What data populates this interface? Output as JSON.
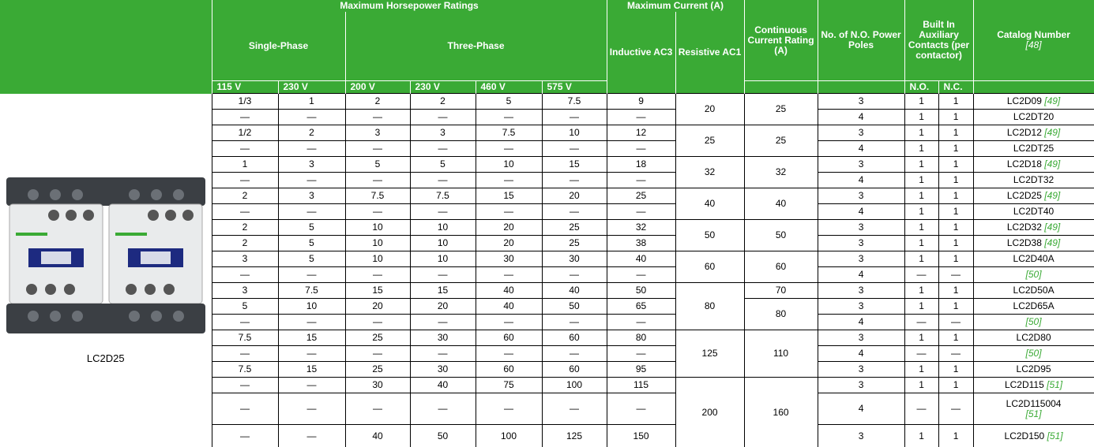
{
  "header": {
    "horsepower": "Maximum Horsepower Ratings",
    "current": "Maximum Current (A)",
    "single_phase": "Single-Phase",
    "three_phase": "Three-Phase",
    "inductive": "Inductive AC3",
    "resistive": "Resistive AC1",
    "continuous": "Continuous Current Rating (A)",
    "poles": "No. of N.O. Power Poles",
    "auxiliary": "Built In Auxiliary Contacts (per contactor)",
    "catalog": "Catalog Number",
    "catalog_ref": "[48]",
    "voltages": [
      "115 V",
      "230 V",
      "200 V",
      "230 V",
      "460 V",
      "575 V"
    ],
    "no": "N.O.",
    "nc": "N.C."
  },
  "image_caption": "LC2D25",
  "rows": [
    {
      "hp": [
        "1/3",
        "1",
        "2",
        "2",
        "5",
        "7.5"
      ],
      "inductive": "9",
      "resistive": "20",
      "continuous": "25",
      "poles": "3",
      "no": "1",
      "nc": "1",
      "catalog": "LC2D09",
      "ref": "[49]"
    },
    {
      "hp": [
        "—",
        "—",
        "—",
        "—",
        "—",
        "—"
      ],
      "inductive": "—",
      "poles": "4",
      "no": "1",
      "nc": "1",
      "catalog": "LC2DT20"
    },
    {
      "hp": [
        "1/2",
        "2",
        "3",
        "3",
        "7.5",
        "10"
      ],
      "inductive": "12",
      "resistive": "25",
      "continuous": "25",
      "poles": "3",
      "no": "1",
      "nc": "1",
      "catalog": "LC2D12",
      "ref": "[49]"
    },
    {
      "hp": [
        "—",
        "—",
        "—",
        "—",
        "—",
        "—"
      ],
      "inductive": "—",
      "poles": "4",
      "no": "1",
      "nc": "1",
      "catalog": "LC2DT25"
    },
    {
      "hp": [
        "1",
        "3",
        "5",
        "5",
        "10",
        "15"
      ],
      "inductive": "18",
      "resistive": "32",
      "continuous": "32",
      "poles": "3",
      "no": "1",
      "nc": "1",
      "catalog": "LC2D18",
      "ref": "[49]"
    },
    {
      "hp": [
        "—",
        "—",
        "—",
        "—",
        "—",
        "—"
      ],
      "inductive": "—",
      "poles": "4",
      "no": "1",
      "nc": "1",
      "catalog": "LC2DT32"
    },
    {
      "hp": [
        "2",
        "3",
        "7.5",
        "7.5",
        "15",
        "20"
      ],
      "inductive": "25",
      "resistive": "40",
      "continuous": "40",
      "poles": "3",
      "no": "1",
      "nc": "1",
      "catalog": "LC2D25",
      "ref": "[49]"
    },
    {
      "hp": [
        "—",
        "—",
        "—",
        "—",
        "—",
        "—"
      ],
      "inductive": "—",
      "poles": "4",
      "no": "1",
      "nc": "1",
      "catalog": "LC2DT40"
    },
    {
      "hp": [
        "2",
        "5",
        "10",
        "10",
        "20",
        "25"
      ],
      "inductive": "32",
      "resistive": "50",
      "continuous": "50",
      "poles": "3",
      "no": "1",
      "nc": "1",
      "catalog": "LC2D32",
      "ref": "[49]"
    },
    {
      "hp": [
        "2",
        "5",
        "10",
        "10",
        "20",
        "25"
      ],
      "inductive": "38",
      "poles": "3",
      "no": "1",
      "nc": "1",
      "catalog": "LC2D38",
      "ref": "[49]"
    },
    {
      "hp": [
        "3",
        "5",
        "10",
        "10",
        "30",
        "30"
      ],
      "inductive": "40",
      "resistive": "60",
      "continuous": "60",
      "poles": "3",
      "no": "1",
      "nc": "1",
      "catalog": "LC2D40A"
    },
    {
      "hp": [
        "—",
        "—",
        "—",
        "—",
        "—",
        "—"
      ],
      "inductive": "—",
      "poles": "4",
      "no": "—",
      "nc": "—",
      "ref": "[50]"
    },
    {
      "hp": [
        "3",
        "7.5",
        "15",
        "15",
        "40",
        "40"
      ],
      "inductive": "50",
      "resistive": "80",
      "continuous": "70",
      "poles": "3",
      "no": "1",
      "nc": "1",
      "catalog": "LC2D50A"
    },
    {
      "hp": [
        "5",
        "10",
        "20",
        "20",
        "40",
        "50"
      ],
      "inductive": "65",
      "continuous": "80",
      "poles": "3",
      "no": "1",
      "nc": "1",
      "catalog": "LC2D65A"
    },
    {
      "hp": [
        "—",
        "—",
        "—",
        "—",
        "—",
        "—"
      ],
      "inductive": "—",
      "poles": "4",
      "no": "—",
      "nc": "—",
      "ref": "[50]"
    },
    {
      "hp": [
        "7.5",
        "15",
        "25",
        "30",
        "60",
        "60"
      ],
      "inductive": "80",
      "resistive": "125",
      "continuous": "110",
      "poles": "3",
      "no": "1",
      "nc": "1",
      "catalog": "LC2D80"
    },
    {
      "hp": [
        "—",
        "—",
        "—",
        "—",
        "—",
        "—"
      ],
      "inductive": "—",
      "poles": "4",
      "no": "—",
      "nc": "—",
      "ref": "[50]"
    },
    {
      "hp": [
        "7.5",
        "15",
        "25",
        "30",
        "60",
        "60"
      ],
      "inductive": "95",
      "poles": "3",
      "no": "1",
      "nc": "1",
      "catalog": "LC2D95"
    },
    {
      "hp": [
        "—",
        "—",
        "30",
        "40",
        "75",
        "100"
      ],
      "inductive": "115",
      "resistive": "200",
      "continuous": "160",
      "poles": "3",
      "no": "1",
      "nc": "1",
      "catalog": "LC2D115",
      "ref": "[51]"
    },
    {
      "hp": [
        "—",
        "—",
        "—",
        "—",
        "—",
        "—"
      ],
      "inductive": "—",
      "poles": "4",
      "no": "—",
      "nc": "—",
      "catalog": "LC2D115004",
      "ref": "[51]"
    },
    {
      "hp": [
        "—",
        "—",
        "40",
        "50",
        "100",
        "125"
      ],
      "inductive": "150",
      "poles": "3",
      "no": "1",
      "nc": "1",
      "catalog": "LC2D150",
      "ref": "[51]"
    }
  ]
}
